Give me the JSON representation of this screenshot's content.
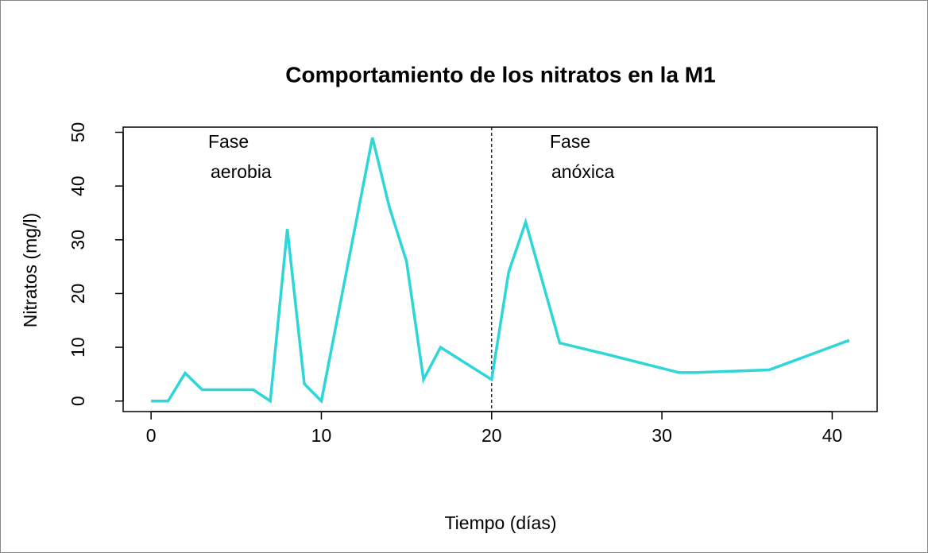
{
  "chart_data": {
    "type": "line",
    "title": "Comportamiento de los nitratos en la M1",
    "xlabel": "Tiempo (días)",
    "ylabel": "Nitratos (mg/l)",
    "x": [
      0,
      1,
      2,
      3,
      6,
      7,
      8,
      9,
      10,
      13,
      14,
      15,
      16,
      17,
      20,
      21,
      22,
      24,
      27,
      31,
      32,
      36.3,
      41
    ],
    "series": [
      {
        "name": "Nitratos",
        "color": "#2fd6d8",
        "values": [
          0,
          0,
          5.2,
          2.1,
          2.1,
          0,
          32,
          3.2,
          0,
          49,
          36,
          26,
          4,
          10,
          4,
          24,
          33.3,
          10.8,
          8.5,
          5.3,
          5.3,
          5.8,
          11.3
        ]
      }
    ],
    "xlim": [
      -1.64,
      42.64
    ],
    "ylim": [
      -1.96,
      50.96
    ],
    "xticks": [
      0,
      10,
      20,
      30,
      40
    ],
    "yticks": [
      0,
      10,
      20,
      30,
      40,
      50
    ],
    "vline": 20,
    "annotations": [
      [
        "Fase",
        "aerobia"
      ],
      [
        "Fase",
        "anóxica"
      ]
    ]
  }
}
